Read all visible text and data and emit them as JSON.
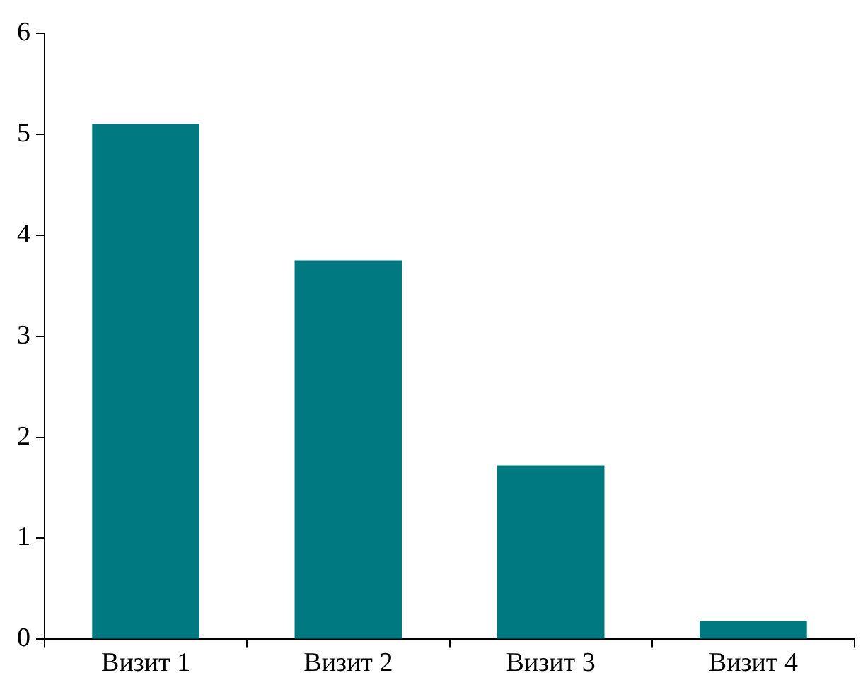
{
  "chart_data": {
    "type": "bar",
    "categories": [
      "Визит 1",
      "Визит 2",
      "Визит 3",
      "Визит 4"
    ],
    "values": [
      5.1,
      3.75,
      1.72,
      0.18
    ],
    "color": "#007a80",
    "ylim": [
      0,
      6
    ],
    "yticks": [
      0,
      1,
      2,
      3,
      4,
      5,
      6
    ],
    "grid": false,
    "legend": false
  }
}
